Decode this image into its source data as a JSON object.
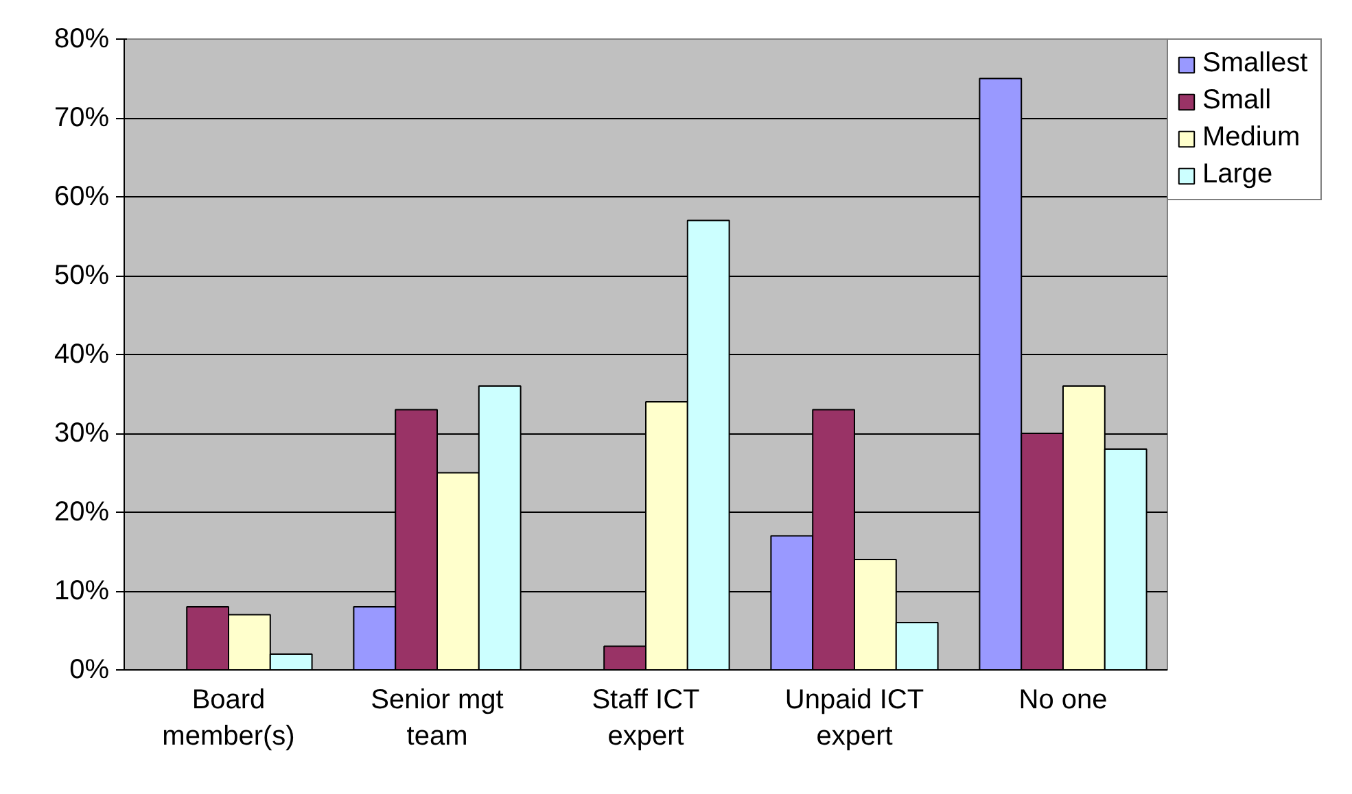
{
  "chart_data": {
    "type": "bar",
    "categories": [
      "Board member(s)",
      "Senior mgt team",
      "Staff ICT expert",
      "Unpaid ICT expert",
      "No one"
    ],
    "series": [
      {
        "name": "Smallest",
        "color": "#9999ff",
        "values": [
          null,
          8,
          null,
          17,
          75
        ]
      },
      {
        "name": "Small",
        "color": "#993366",
        "values": [
          8,
          33,
          3,
          33,
          30
        ]
      },
      {
        "name": "Medium",
        "color": "#ffffcc",
        "values": [
          7,
          25,
          34,
          14,
          36
        ]
      },
      {
        "name": "Large",
        "color": "#ccffff",
        "values": [
          2,
          36,
          57,
          6,
          28
        ]
      }
    ],
    "ylim": [
      0,
      80
    ],
    "yticks": [
      {
        "value": 0,
        "label": "0%"
      },
      {
        "value": 10,
        "label": "10%"
      },
      {
        "value": 20,
        "label": "20%"
      },
      {
        "value": 30,
        "label": "30%"
      },
      {
        "value": 40,
        "label": "40%"
      },
      {
        "value": 50,
        "label": "50%"
      },
      {
        "value": 60,
        "label": "60%"
      },
      {
        "value": 70,
        "label": "70%"
      },
      {
        "value": 80,
        "label": "80%"
      }
    ],
    "grid": "y",
    "legend": "right"
  }
}
